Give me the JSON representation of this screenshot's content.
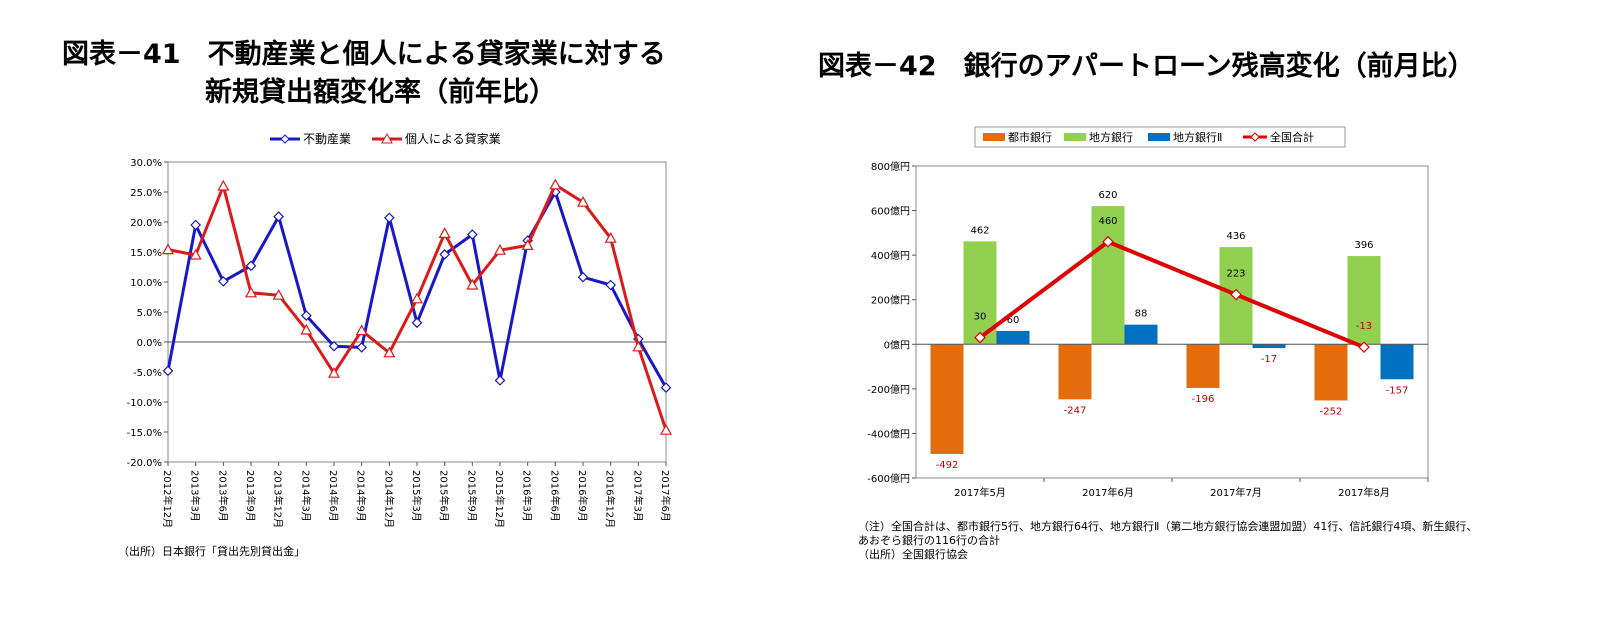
{
  "chart1": {
    "title_line1": "図表－41　不動産業と個人による貸家業に対する",
    "title_line2": "新規貸出額変化率（前年比）",
    "source": "（出所）日本銀行「貸出先別貸出金」"
  },
  "chart2": {
    "title": "図表－42　銀行のアパートローン残高変化（前月比）",
    "note": "（注）全国合計は、都市銀行5行、地方銀行64行、地方銀行Ⅱ（第二地方銀行協会連盟加盟）41行、信託銀行4項、新生銀行、あおぞら銀行の116行の合計",
    "source": "（出所）全国銀行協会"
  },
  "chart_data": [
    {
      "type": "line",
      "title": "図表－41　不動産業と個人による貸家業に対する新規貸出額変化率（前年比）",
      "categories": [
        "2012年12月",
        "2013年3月",
        "2013年6月",
        "2013年9月",
        "2013年12月",
        "2014年3月",
        "2014年6月",
        "2014年9月",
        "2014年12月",
        "2015年3月",
        "2015年6月",
        "2015年9月",
        "2015年12月",
        "2016年3月",
        "2016年6月",
        "2016年9月",
        "2016年12月",
        "2017年3月",
        "2017年6月"
      ],
      "ylim": [
        -20,
        30
      ],
      "yticks": [
        "30.0%",
        "25.0%",
        "20.0%",
        "15.0%",
        "10.0%",
        "5.0%",
        "0.0%",
        "-5.0%",
        "-10.0%",
        "-15.0%",
        "-20.0%"
      ],
      "legend_position": "top",
      "grid": false,
      "series": [
        {
          "name": "不動産業",
          "color": "#1818c8",
          "marker": "diamond",
          "values": [
            -4.8,
            19.5,
            10.1,
            12.7,
            20.9,
            4.4,
            -0.7,
            -0.9,
            20.7,
            3.2,
            14.6,
            17.9,
            -6.4,
            16.9,
            25.0,
            10.8,
            9.5,
            0.5,
            -7.6
          ]
        },
        {
          "name": "個人による貸家業",
          "color": "#dd1a1a",
          "marker": "triangle",
          "values": [
            15.4,
            14.5,
            26.0,
            8.2,
            7.8,
            2.0,
            -5.2,
            1.9,
            -1.8,
            7.2,
            18.1,
            9.5,
            15.3,
            16.1,
            26.2,
            23.3,
            17.3,
            -0.8,
            -14.7
          ]
        }
      ]
    },
    {
      "type": "bar",
      "title": "図表－42　銀行のアパートローン残高変化（前月比）",
      "categories": [
        "2017年5月",
        "2017年6月",
        "2017年7月",
        "2017年8月"
      ],
      "ylim": [
        -600,
        800
      ],
      "yticks": [
        "800億円",
        "600億円",
        "400億円",
        "200億円",
        "0億円",
        "-200億円",
        "-400億円",
        "-600億円"
      ],
      "legend_position": "top",
      "grid": false,
      "series": [
        {
          "name": "都市銀行",
          "type": "bar",
          "color": "#e46c0a",
          "values": [
            -492,
            -247,
            -196,
            -252
          ]
        },
        {
          "name": "地方銀行",
          "type": "bar",
          "color": "#92d050",
          "values": [
            462,
            620,
            436,
            396
          ]
        },
        {
          "name": "地方銀行Ⅱ",
          "type": "bar",
          "color": "#0070c0",
          "values": [
            60,
            88,
            -17,
            -157
          ]
        },
        {
          "name": "全国合計",
          "type": "line",
          "color": "#e00000",
          "values": [
            30,
            460,
            223,
            -13
          ]
        }
      ]
    }
  ]
}
